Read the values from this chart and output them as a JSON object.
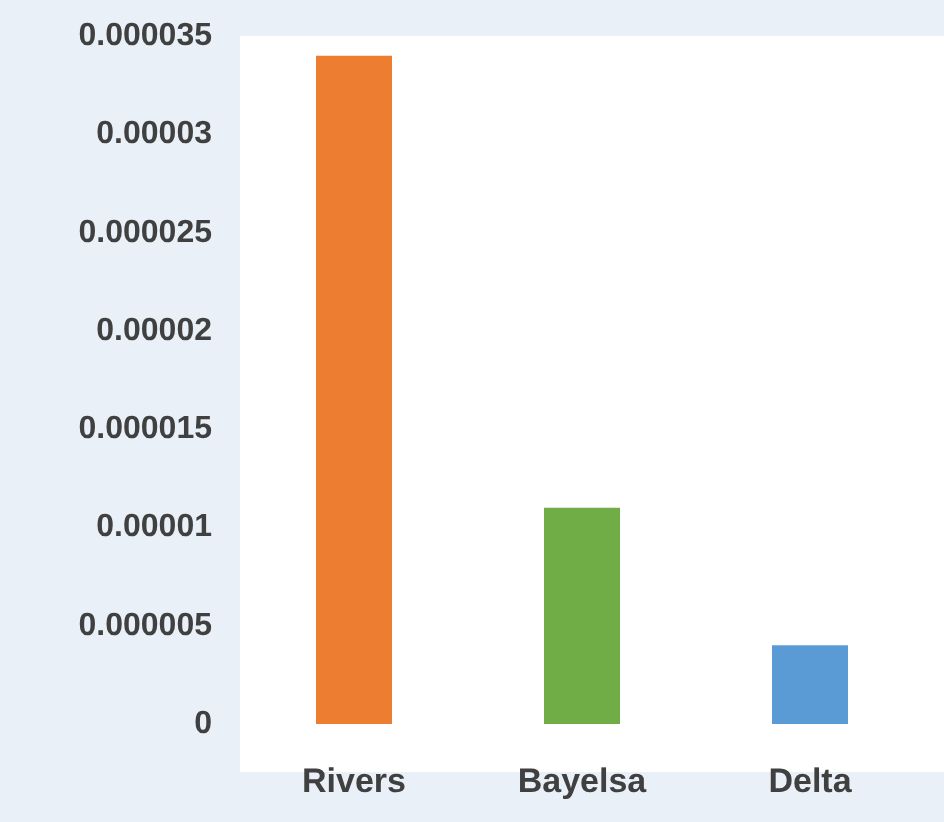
{
  "chart_data": {
    "type": "bar",
    "categories": [
      "Rivers",
      "Bayelsa",
      "Delta"
    ],
    "values": [
      3.4e-05,
      1.1e-05,
      4e-06
    ],
    "colors": [
      "#ed7d31",
      "#70ad47",
      "#5b9bd5"
    ],
    "ylim": [
      0,
      3.5e-05
    ],
    "yticks": [
      {
        "value": 0,
        "label": "0"
      },
      {
        "value": 5e-06,
        "label": "0.000005"
      },
      {
        "value": 1e-05,
        "label": "0.00001"
      },
      {
        "value": 1.5e-05,
        "label": "0.000015"
      },
      {
        "value": 2e-05,
        "label": "0.00002"
      },
      {
        "value": 2.5e-05,
        "label": "0.000025"
      },
      {
        "value": 3e-05,
        "label": "0.00003"
      },
      {
        "value": 3.5e-05,
        "label": "0.000035"
      }
    ],
    "grid": false
  }
}
